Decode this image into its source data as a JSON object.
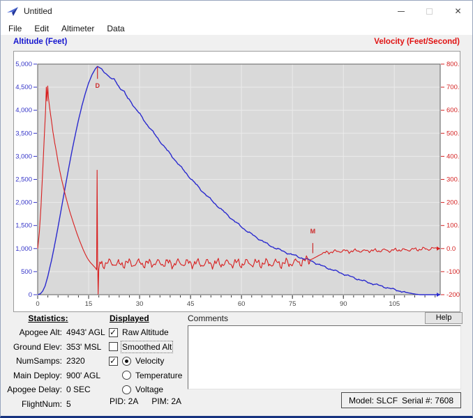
{
  "window": {
    "title": "Untitled",
    "controls": {
      "minimize_glyph": "",
      "maximize_glyph": "",
      "close_glyph": "✕"
    }
  },
  "menu": {
    "items": [
      {
        "label": "File"
      },
      {
        "label": "Edit"
      },
      {
        "label": "Altimeter"
      },
      {
        "label": "Data"
      }
    ]
  },
  "chart_data": {
    "type": "line",
    "title": "",
    "x_axis": {
      "min": 0,
      "max": 118.5,
      "major_ticks": [
        0,
        15,
        30,
        45,
        60,
        75,
        90,
        105
      ],
      "minor_step": 3,
      "label_color": "#4a4a4a"
    },
    "y_left": {
      "title": "Altitude (Feet)",
      "min": 0,
      "max": 5000,
      "tick_step": 500,
      "tick_labels": [
        "0",
        "500",
        "1,000",
        "1,500",
        "2,000",
        "2,500",
        "3,000",
        "3,500",
        "4,000",
        "4,500",
        "5,000"
      ],
      "color": "#3434c8"
    },
    "y_right": {
      "title": "Velocity (Feet/Second)",
      "min": -200,
      "max": 800,
      "tick_step": 100,
      "tick_labels": [
        "-200.0",
        "-100.0",
        "0.0",
        "100.0",
        "200.0",
        "300.0",
        "400.0",
        "500.0",
        "600.0",
        "700.0",
        "800.0"
      ],
      "color": "#d42222"
    },
    "grid": {
      "bg": "#d9d9d9",
      "line": "#ebebeb",
      "border": "#5f5f5f"
    },
    "series": [
      {
        "name": "Raw Altitude",
        "axis": "left",
        "color": "#2a2ace",
        "width": 1.4,
        "points": [
          [
            0,
            0
          ],
          [
            0.8,
            20
          ],
          [
            1.5,
            80
          ],
          [
            2.2,
            190
          ],
          [
            3,
            400
          ],
          [
            4,
            720
          ],
          [
            5,
            1080
          ],
          [
            6,
            1470
          ],
          [
            7,
            1880
          ],
          [
            8,
            2290
          ],
          [
            9,
            2690
          ],
          [
            10,
            3080
          ],
          [
            11,
            3440
          ],
          [
            12,
            3780
          ],
          [
            13,
            4090
          ],
          [
            14,
            4360
          ],
          [
            15,
            4590
          ],
          [
            16,
            4770
          ],
          [
            17,
            4900
          ],
          [
            17.6,
            4950
          ],
          [
            18.4,
            4915
          ],
          [
            19,
            4890
          ],
          [
            20,
            4800
          ],
          [
            21,
            4730
          ],
          [
            21.8,
            4660
          ],
          [
            22.6,
            4680
          ],
          [
            23.5,
            4560
          ],
          [
            24.5,
            4460
          ],
          [
            25.5,
            4390
          ],
          [
            26.5,
            4260
          ],
          [
            27.5,
            4190
          ],
          [
            28.5,
            4060
          ],
          [
            30,
            3920
          ],
          [
            32,
            3710
          ],
          [
            34,
            3520
          ],
          [
            36,
            3330
          ],
          [
            38,
            3140
          ],
          [
            40,
            2960
          ],
          [
            42,
            2780
          ],
          [
            44,
            2610
          ],
          [
            46,
            2440
          ],
          [
            48,
            2280
          ],
          [
            50,
            2130
          ],
          [
            52,
            1990
          ],
          [
            54,
            1850
          ],
          [
            56,
            1720
          ],
          [
            58,
            1590
          ],
          [
            60,
            1470
          ],
          [
            62,
            1360
          ],
          [
            64,
            1260
          ],
          [
            66,
            1170
          ],
          [
            68,
            1080
          ],
          [
            70,
            1010
          ],
          [
            72,
            950
          ],
          [
            74,
            890
          ],
          [
            76,
            840
          ],
          [
            78,
            790
          ],
          [
            80,
            745
          ],
          [
            81,
            720
          ],
          [
            82,
            680
          ],
          [
            83,
            645
          ],
          [
            84,
            615
          ],
          [
            85,
            590
          ],
          [
            86,
            560
          ],
          [
            88,
            505
          ],
          [
            90,
            450
          ],
          [
            92,
            395
          ],
          [
            94,
            345
          ],
          [
            96,
            295
          ],
          [
            98,
            250
          ],
          [
            100,
            210
          ],
          [
            102,
            170
          ],
          [
            104,
            130
          ],
          [
            106,
            92
          ],
          [
            108,
            58
          ],
          [
            110,
            28
          ],
          [
            111.5,
            8
          ],
          [
            112.5,
            0
          ],
          [
            118.5,
            0
          ]
        ],
        "noise": [
          {
            "from": 19,
            "to": 108,
            "amp": 26,
            "f": 0.7
          }
        ]
      },
      {
        "name": "Velocity",
        "axis": "right",
        "color": "#d81e1e",
        "width": 1.1,
        "points": [
          [
            0,
            0
          ],
          [
            0.5,
            70
          ],
          [
            1,
            190
          ],
          [
            1.5,
            340
          ],
          [
            2,
            500
          ],
          [
            2.3,
            590
          ],
          [
            2.55,
            700
          ],
          [
            2.75,
            640
          ],
          [
            2.95,
            705
          ],
          [
            3.2,
            650
          ],
          [
            3.5,
            615
          ],
          [
            4,
            560
          ],
          [
            4.5,
            505
          ],
          [
            5,
            460
          ],
          [
            5.5,
            420
          ],
          [
            6,
            375
          ],
          [
            6.5,
            338
          ],
          [
            7,
            302
          ],
          [
            7.5,
            272
          ],
          [
            8,
            240
          ],
          [
            8.5,
            212
          ],
          [
            9,
            185
          ],
          [
            9.5,
            158
          ],
          [
            10,
            135
          ],
          [
            10.5,
            112
          ],
          [
            11,
            90
          ],
          [
            11.5,
            68
          ],
          [
            12,
            48
          ],
          [
            12.5,
            28
          ],
          [
            13,
            10
          ],
          [
            13.5,
            -8
          ],
          [
            14,
            -24
          ],
          [
            14.5,
            -38
          ],
          [
            15,
            -50
          ],
          [
            15.5,
            -60
          ],
          [
            16,
            -68
          ],
          [
            16.5,
            -76
          ],
          [
            17,
            -84
          ],
          [
            17.35,
            -92
          ],
          [
            17.5,
            340
          ],
          [
            17.65,
            -40
          ],
          [
            17.8,
            -198
          ],
          [
            18,
            -90
          ],
          [
            18.3,
            -58
          ],
          [
            18.6,
            -66
          ],
          [
            20,
            -66
          ],
          [
            22,
            -60
          ],
          [
            24,
            -70
          ],
          [
            26,
            -62
          ],
          [
            28,
            -66
          ],
          [
            30,
            -62
          ],
          [
            32,
            -66
          ],
          [
            34,
            -62
          ],
          [
            36,
            -64
          ],
          [
            38,
            -62
          ],
          [
            40,
            -66
          ],
          [
            42,
            -62
          ],
          [
            44,
            -64
          ],
          [
            46,
            -62
          ],
          [
            48,
            -66
          ],
          [
            50,
            -63
          ],
          [
            52,
            -65
          ],
          [
            54,
            -62
          ],
          [
            56,
            -65
          ],
          [
            58,
            -63
          ],
          [
            60,
            -64
          ],
          [
            62,
            -62
          ],
          [
            64,
            -65
          ],
          [
            66,
            -63
          ],
          [
            68,
            -64
          ],
          [
            70,
            -63
          ],
          [
            72,
            -65
          ],
          [
            74,
            -62
          ],
          [
            76,
            -60
          ],
          [
            78,
            -56
          ],
          [
            80,
            -50
          ],
          [
            81,
            -44
          ],
          [
            82,
            -36
          ],
          [
            83,
            -28
          ],
          [
            84,
            -22
          ],
          [
            85,
            -18
          ],
          [
            86,
            -15
          ],
          [
            88,
            -12
          ],
          [
            90,
            -10
          ],
          [
            92,
            -12
          ],
          [
            94,
            -9
          ],
          [
            96,
            -11
          ],
          [
            98,
            -8
          ],
          [
            100,
            -10
          ],
          [
            102,
            -7
          ],
          [
            104,
            -9
          ],
          [
            106,
            -5
          ],
          [
            108,
            -7
          ],
          [
            110,
            -4
          ],
          [
            112,
            -3
          ],
          [
            114,
            -2
          ],
          [
            116,
            -1
          ],
          [
            118.5,
            0
          ]
        ],
        "noise": [
          {
            "from": 18.6,
            "to": 80,
            "amp": 26,
            "f": 1
          },
          {
            "from": 84,
            "to": 117.5,
            "amp": 10,
            "f": 1
          }
        ]
      }
    ],
    "markers": [
      {
        "label": "D",
        "t": 17.6,
        "line_from": 4945,
        "line_to": 4680,
        "label_at": 4490,
        "color": "#cc2a2a"
      },
      {
        "label": "M",
        "t": 81,
        "line_from": 1120,
        "line_to": 900,
        "label_at": 1330,
        "color": "#cc2a2a"
      }
    ]
  },
  "stats": {
    "header": "Statistics:",
    "rows": [
      {
        "label": "Apogee Alt:",
        "value": "4943' AGL"
      },
      {
        "label": "Ground Elev:",
        "value": "353' MSL"
      },
      {
        "label": "NumSamps:",
        "value": "2320"
      },
      {
        "label": "Main Deploy:",
        "value": "900' AGL"
      },
      {
        "label": "Apogee Delay:",
        "value": "0 SEC"
      },
      {
        "label": "FlightNum:",
        "value": "5"
      }
    ]
  },
  "displayed": {
    "header": "Displayed",
    "raw_altitude": {
      "label": "Raw Altitude",
      "checked": true
    },
    "smoothed_alt": {
      "label": "Smoothed Alt",
      "checked": false
    },
    "velocity": {
      "label": "Velocity",
      "checked": true,
      "selected": true
    },
    "temperature": {
      "label": "Temperature",
      "selected": false
    },
    "voltage": {
      "label": "Voltage",
      "selected": false
    },
    "pid": "PID:  2A",
    "pim": "PIM:  2A"
  },
  "comments": {
    "label": "Comments",
    "value": "",
    "help_label": "Help"
  },
  "model_box": {
    "model": "Model:  SLCF",
    "serial": "Serial #:  7608"
  }
}
